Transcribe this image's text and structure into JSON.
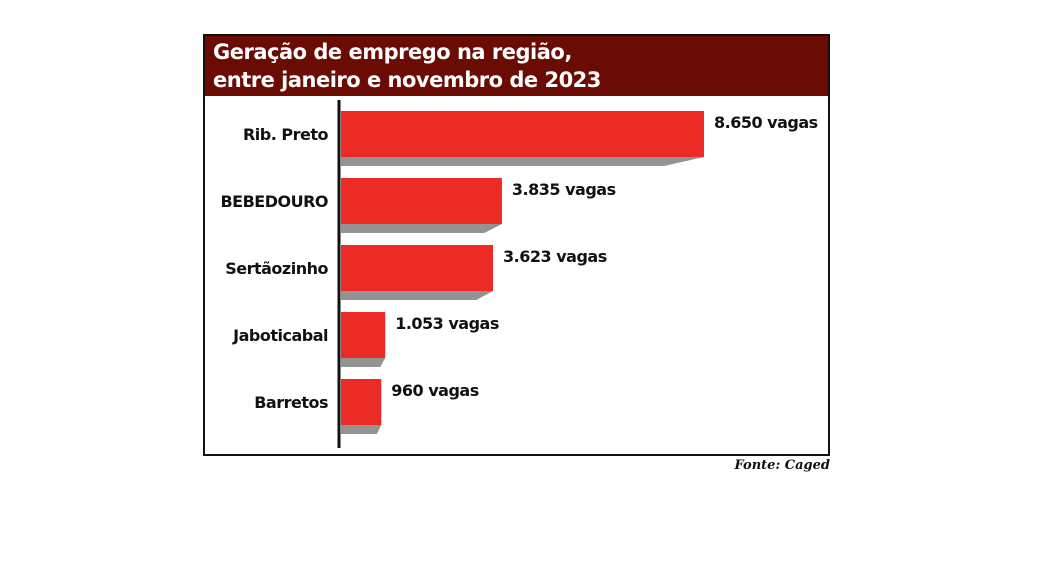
{
  "chart_data": {
    "type": "bar",
    "orientation": "horizontal",
    "title": "Geração de emprego na região, entre janeiro e novembro de 2023",
    "title_lines": [
      "Geração de emprego na região,",
      "entre janeiro e novembro de 2023"
    ],
    "categories": [
      "Rib. Preto",
      "BEBEDOURO",
      "Sertãozinho",
      "Jaboticabal",
      "Barretos"
    ],
    "values": [
      8650,
      3835,
      3623,
      1053,
      960
    ],
    "data_labels": [
      "8.650 vagas",
      "3.835 vagas",
      "3.623 vagas",
      "1.053 vagas",
      "960 vagas"
    ],
    "xlabel": "",
    "ylabel": "",
    "xlim": [
      0,
      8650
    ],
    "grid": false,
    "source": "Fonte: Caged",
    "colors": {
      "bar": "#ec2a26",
      "shadow": "#939393",
      "title_bg": "#6a0b04"
    }
  }
}
